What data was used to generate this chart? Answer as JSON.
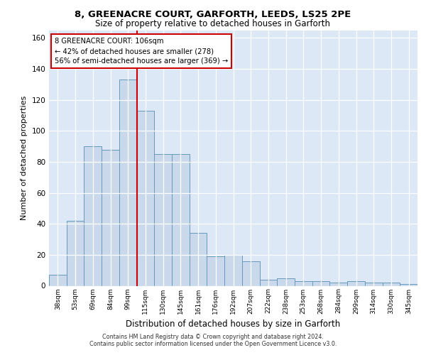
{
  "title_line1": "8, GREENACRE COURT, GARFORTH, LEEDS, LS25 2PE",
  "title_line2": "Size of property relative to detached houses in Garforth",
  "xlabel": "Distribution of detached houses by size in Garforth",
  "ylabel": "Number of detached properties",
  "categories": [
    "38sqm",
    "53sqm",
    "69sqm",
    "84sqm",
    "99sqm",
    "115sqm",
    "130sqm",
    "145sqm",
    "161sqm",
    "176sqm",
    "192sqm",
    "207sqm",
    "222sqm",
    "238sqm",
    "253sqm",
    "268sqm",
    "284sqm",
    "299sqm",
    "314sqm",
    "330sqm",
    "345sqm"
  ],
  "bar_values": [
    7,
    42,
    90,
    88,
    133,
    113,
    85,
    85,
    34,
    19,
    20,
    16,
    4,
    5,
    3,
    3,
    2,
    3,
    2,
    2,
    1
  ],
  "bar_color": "#c9d9eb",
  "bar_edge_color": "#6699bb",
  "property_line_x": 4.5,
  "annotation_text": "8 GREENACRE COURT: 106sqm\n← 42% of detached houses are smaller (278)\n56% of semi-detached houses are larger (369) →",
  "annotation_box_color": "#ffffff",
  "annotation_box_edge": "#cc0000",
  "line_color": "#cc0000",
  "ylim": [
    0,
    165
  ],
  "yticks": [
    0,
    20,
    40,
    60,
    80,
    100,
    120,
    140,
    160
  ],
  "background_color": "#dce8f5",
  "footer_line1": "Contains HM Land Registry data © Crown copyright and database right 2024.",
  "footer_line2": "Contains public sector information licensed under the Open Government Licence v3.0."
}
